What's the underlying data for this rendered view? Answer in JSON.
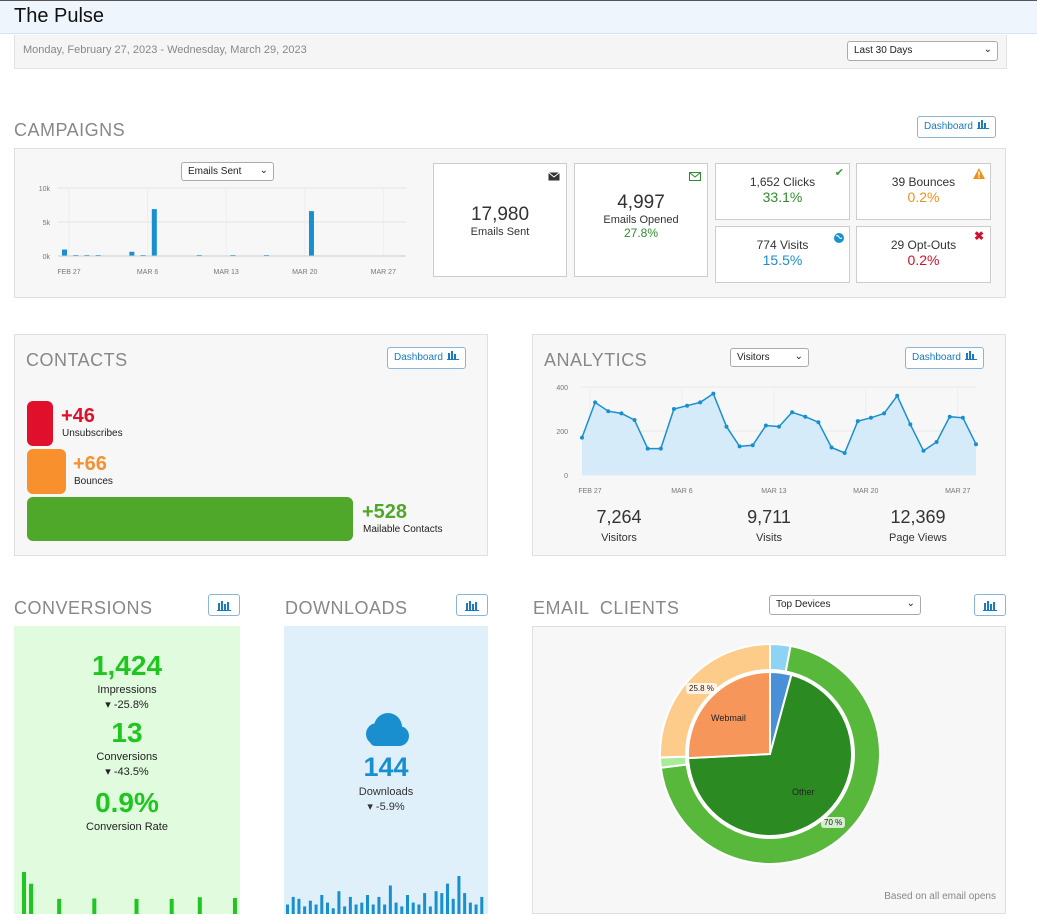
{
  "app": {
    "title": "The Pulse"
  },
  "date_range": {
    "text": "Monday, February 27, 2023  -  Wednesday, March 29, 2023",
    "period_select": "Last 30 Days"
  },
  "campaigns": {
    "title": "CAMPAIGNS",
    "dashboard_label": "Dashboard",
    "metric_select": "Emails Sent",
    "chart_yticks": [
      "10k",
      "5k",
      "0k"
    ],
    "chart_xticks": [
      "FEB 27",
      "MAR 6",
      "MAR 13",
      "MAR 20",
      "MAR 27"
    ],
    "emails_sent": {
      "value": "17,980",
      "label": "Emails Sent"
    },
    "emails_opened": {
      "value": "4,997",
      "label": "Emails Opened",
      "rate": "27.8%"
    },
    "clicks": {
      "label": "1,652 Clicks",
      "rate": "33.1%"
    },
    "bounces": {
      "label": "39 Bounces",
      "rate": "0.2%"
    },
    "visits": {
      "label": "774 Visits",
      "rate": "15.5%"
    },
    "optouts": {
      "label": "29 Opt-Outs",
      "rate": "0.2%"
    }
  },
  "contacts": {
    "title": "CONTACTS",
    "dashboard_label": "Dashboard",
    "unsubscribes": {
      "value": "+46",
      "label": "Unsubscribes"
    },
    "bounces": {
      "value": "+66",
      "label": "Bounces"
    },
    "mailable": {
      "value": "+528",
      "label": "Mailable Contacts"
    }
  },
  "analytics": {
    "title": "ANALYTICS",
    "metric_select": "Visitors",
    "dashboard_label": "Dashboard",
    "yticks": [
      "400",
      "200",
      "0"
    ],
    "xticks": [
      "FEB 27",
      "MAR 6",
      "MAR 13",
      "MAR 20",
      "MAR 27"
    ],
    "visitors": {
      "value": "7,264",
      "label": "Visitors"
    },
    "visits": {
      "value": "9,711",
      "label": "Visits"
    },
    "page_views": {
      "value": "12,369",
      "label": "Page Views"
    }
  },
  "conversions": {
    "title": "CONVERSIONS",
    "impressions": {
      "value": "1,424",
      "label": "Impressions",
      "change": "-25.8%"
    },
    "conversions": {
      "value": "13",
      "label": "Conversions",
      "change": "-43.5%"
    },
    "rate": {
      "value": "0.9%",
      "label": "Conversion Rate"
    }
  },
  "downloads": {
    "title": "DOWNLOADS",
    "value": "144",
    "label": "Downloads",
    "change": "-5.9%"
  },
  "email_clients": {
    "title": "EMAIL  CLIENTS",
    "select": "Top Devices",
    "webmail_label": "Webmail",
    "other_label": "Other",
    "webmail_pct": "25.8 %",
    "other_pct": "70 %",
    "footer": "Based on all email opens"
  },
  "colors": {
    "accent_blue": "#1a8fd0",
    "green": "#2e8b2e",
    "orange": "#f0901d",
    "red": "#d0102d",
    "conv_green": "#1fc61f"
  },
  "chart_data": [
    {
      "type": "bar",
      "series": [
        {
          "values": [
            950,
            120,
            150,
            80,
            0,
            0,
            620,
            130,
            6900,
            0,
            0,
            0,
            150,
            0,
            0,
            100,
            0,
            0,
            80,
            0,
            0,
            0,
            6600,
            0,
            0,
            0,
            0,
            0,
            0,
            0,
            0
          ]
        }
      ],
      "ylim": [
        0,
        10000
      ],
      "ticks_y": [
        "10k",
        "5k",
        "0k"
      ],
      "ticks_x": [
        "FEB 27",
        "MAR 6",
        "MAR 13",
        "MAR 20",
        "MAR 27"
      ]
    },
    {
      "type": "area",
      "series": [
        {
          "values": [
            170,
            330,
            290,
            280,
            250,
            120,
            120,
            300,
            315,
            330,
            370,
            220,
            130,
            135,
            225,
            220,
            285,
            265,
            240,
            125,
            100,
            245,
            260,
            280,
            360,
            230,
            110,
            150,
            265,
            260,
            140
          ]
        }
      ],
      "ylim": [
        0,
        400
      ],
      "ticks_y": [
        "400",
        "200",
        "0"
      ],
      "ticks_x": [
        "FEB 27",
        "MAR 6",
        "MAR 13",
        "MAR 20",
        "MAR 27"
      ]
    },
    {
      "type": "bar",
      "series": [
        {
          "values": [
            1,
            0.72,
            0,
            0,
            0,
            0.36,
            0,
            0,
            0,
            0,
            0.37,
            0,
            0,
            0,
            0,
            0,
            0.36,
            0,
            0,
            0,
            0,
            0.36,
            0,
            0,
            0,
            0.4,
            0,
            0,
            0,
            0,
            0.38
          ]
        }
      ]
    },
    {
      "type": "bar",
      "series": [
        {
          "values": [
            0.25,
            0.45,
            0.4,
            0.2,
            0.35,
            0.25,
            0.5,
            0.3,
            0.15,
            0.6,
            0.2,
            0.45,
            0.25,
            0.3,
            0.5,
            0.25,
            0.45,
            0.25,
            0.75,
            0.3,
            0.2,
            0.5,
            0.3,
            0.25,
            0.55,
            0.2,
            0.6,
            0.55,
            0.8,
            0.4,
            1,
            0.55,
            0.3,
            0.25,
            0.45
          ]
        }
      ]
    },
    {
      "type": "pie",
      "inner": [
        {
          "label": "Webmail",
          "value": 25.8
        },
        {
          "label": "Other",
          "value": 70
        },
        {
          "label": "(unlabeled)",
          "value": 4.2
        }
      ],
      "outer": [
        {
          "value": 3
        },
        {
          "value": 70
        },
        {
          "value": 1.5
        },
        {
          "value": 25.5
        }
      ]
    }
  ]
}
